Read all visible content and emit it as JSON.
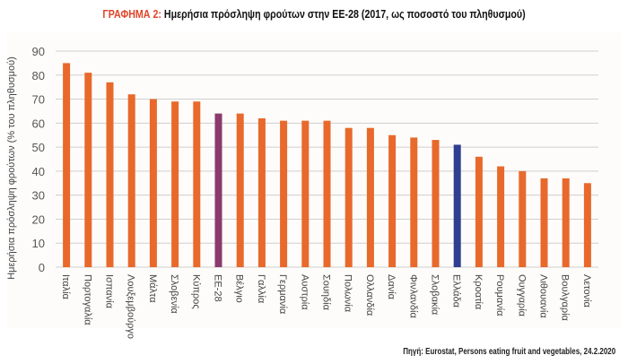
{
  "title_prefix": "ΓΡΑΦΗΜΑ 2:",
  "title": "Ημερήσια πρόσληψη φρούτων στην ΕΕ-28 (2017, ως ποσοστό του πληθυσμού)",
  "source": "Πηγή: Eurostat, Persons eating fruit and vegetables, 24.2.2020",
  "colors": {
    "default": "#e8692b",
    "eu": "#8b3a6e",
    "greece": "#2f3e8f",
    "grid": "#cfcfcf"
  },
  "chart_data": {
    "type": "bar",
    "title": "Ημερήσια πρόσληψη φρούτων στην ΕΕ-28 (2017, ως ποσοστό του πληθυσμού)",
    "xlabel": "",
    "ylabel": "Ημερήσια πρόσληψη φρούτων (% του πληθυσμού)",
    "ylim": [
      0,
      90
    ],
    "yticks": [
      0,
      10,
      20,
      30,
      40,
      50,
      60,
      70,
      80,
      90
    ],
    "grid": true,
    "categories": [
      "Ιταλία",
      "Πορτογαλία",
      "Ισπανία",
      "Λουξεμβούργο",
      "Μάλτα",
      "Σλοβενία",
      "Κύπρος",
      "ΕΕ-28",
      "Βέλγιο",
      "Γαλλία",
      "Γερμανία",
      "Αυστρία",
      "Σουηδία",
      "Πολωνία",
      "Ολλανδία",
      "Δανία",
      "Φινλανδία",
      "Σλοβακία",
      "Ελλάδα",
      "Κροατία",
      "Ρουμανία",
      "Ουγγαρία",
      "Λιθουανία",
      "Βουλγαρία",
      "Λετονία"
    ],
    "values": [
      85,
      81,
      77,
      72,
      70,
      69,
      69,
      64,
      64,
      62,
      61,
      61,
      61,
      58,
      58,
      55,
      54,
      53,
      51,
      46,
      42,
      40,
      37,
      37,
      35
    ],
    "highlight": {
      "ΕΕ-28": "eu",
      "Ελλάδα": "greece"
    }
  }
}
